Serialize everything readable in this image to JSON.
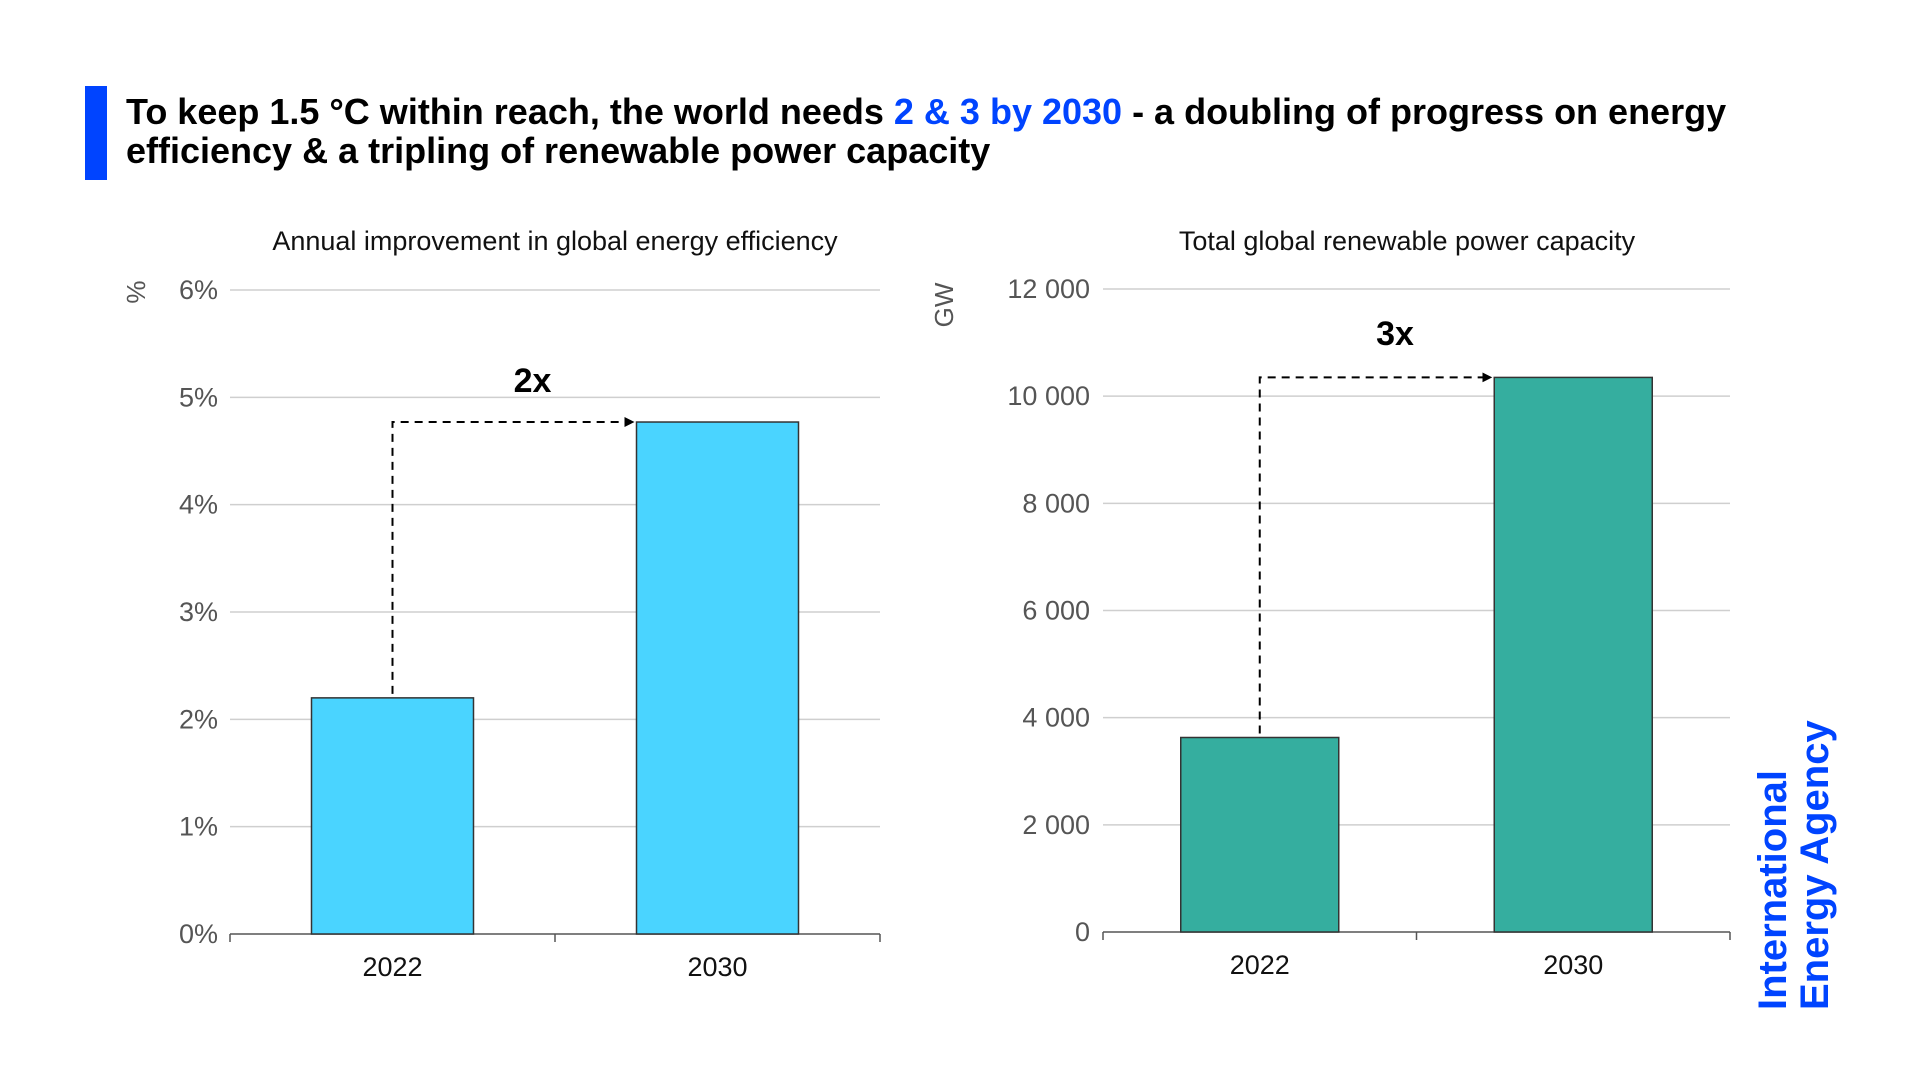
{
  "headline": {
    "part1": "To keep 1.5 °C within reach, the world needs ",
    "highlight": "2 & 3 by 2030",
    "part2": " - a doubling of progress on energy efficiency & a tripling of renewable power capacity",
    "accent_color": "#0044ff"
  },
  "logo": {
    "line1": "International",
    "line2": "Energy Agency",
    "color": "#0044ff"
  },
  "chart_data": [
    {
      "type": "bar",
      "title": "Annual improvement in global energy efficiency",
      "ylabel": "%",
      "categories": [
        "2022",
        "2030"
      ],
      "values": [
        2.2,
        4.77
      ],
      "ylim": [
        0,
        6
      ],
      "yticks": [
        0,
        1,
        2,
        3,
        4,
        5,
        6
      ],
      "ytick_labels": [
        "0%",
        "1%",
        "2%",
        "3%",
        "4%",
        "5%",
        "6%"
      ],
      "bar_color": "#4ad4ff",
      "annotation": "2x",
      "grid": true
    },
    {
      "type": "bar",
      "title": "Total global renewable power capacity",
      "ylabel": "GW",
      "categories": [
        "2022",
        "2030"
      ],
      "values": [
        3630,
        10350
      ],
      "ylim": [
        0,
        12000
      ],
      "yticks": [
        0,
        2000,
        4000,
        6000,
        8000,
        10000,
        12000
      ],
      "ytick_labels": [
        "0",
        "2 000",
        "4 000",
        "6 000",
        "8 000",
        "10 000",
        "12 000"
      ],
      "bar_color": "#35ae9f",
      "annotation": "3x",
      "grid": true
    }
  ]
}
